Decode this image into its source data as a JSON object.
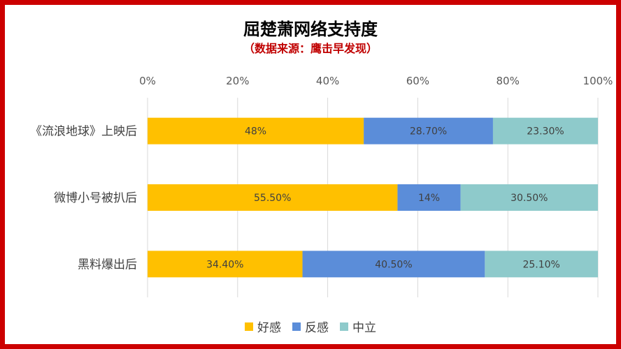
{
  "chart_data": {
    "type": "bar",
    "orientation": "horizontal",
    "stacked": "percent",
    "title": "屈楚萧网络支持度",
    "subtitle": "（数据来源：鹰击早发现）",
    "categories": [
      "《流浪地球》上映后",
      "微博小号被扒后",
      "黑料爆出后"
    ],
    "series": [
      {
        "name": "好感",
        "color": "#ffc000",
        "values": [
          48,
          55.5,
          34.4
        ],
        "labels": [
          "48%",
          "55.50%",
          "34.40%"
        ]
      },
      {
        "name": "反感",
        "color": "#5b8dd9",
        "values": [
          28.7,
          14,
          40.5
        ],
        "labels": [
          "28.70%",
          "14%",
          "40.50%"
        ]
      },
      {
        "name": "中立",
        "color": "#8ecacb",
        "values": [
          23.3,
          30.5,
          25.1
        ],
        "labels": [
          "23.30%",
          "30.50%",
          "25.10%"
        ]
      }
    ],
    "xticks": [
      "0%",
      "20%",
      "40%",
      "60%",
      "80%",
      "100%"
    ],
    "xlim": [
      0,
      100
    ],
    "grid": true,
    "legend_position": "bottom"
  }
}
